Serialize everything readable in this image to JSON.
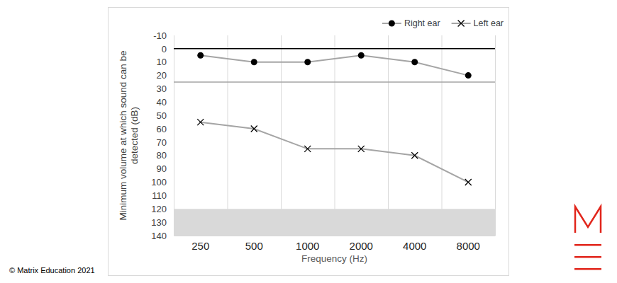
{
  "chart_data": {
    "type": "line",
    "x_label": "Frequency (Hz)",
    "y_label": "Minimum volume at which sound can be detected (dB)",
    "categories": [
      "250",
      "500",
      "1000",
      "2000",
      "4000",
      "8000"
    ],
    "series": [
      {
        "name": "Right ear",
        "color": "#a5a5a5",
        "marker": "circle",
        "values": [
          5,
          10,
          10,
          5,
          10,
          20
        ]
      },
      {
        "name": "Left ear",
        "color": "#a5a5a5",
        "marker": "x",
        "values": [
          55,
          60,
          75,
          75,
          80,
          100
        ]
      }
    ],
    "ylim": [
      -10,
      140
    ],
    "yticks": [
      -10,
      0,
      10,
      20,
      30,
      40,
      50,
      60,
      70,
      80,
      90,
      100,
      110,
      120,
      130,
      140
    ],
    "grid": true,
    "legend": "top-right",
    "reference_lines": [
      {
        "value": 0,
        "color": "#000000"
      },
      {
        "value": 25,
        "color": "#a5a5a5"
      }
    ],
    "shaded_range": [
      120,
      140
    ],
    "annotations": [
      "© Matrix Education 2021"
    ]
  }
}
